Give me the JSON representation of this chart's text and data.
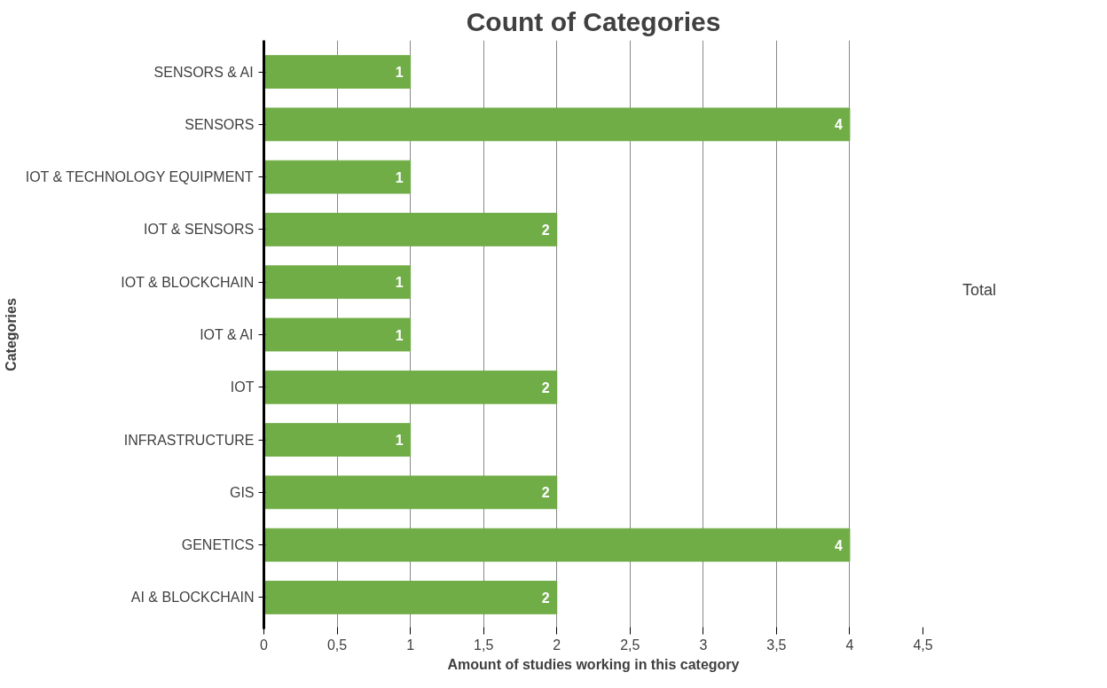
{
  "chart_data": {
    "type": "bar",
    "orientation": "horizontal",
    "title": "Count of Categories",
    "xlabel": "Amount of studies working in this category",
    "ylabel": "Categories",
    "legend_title": "Total",
    "categories": [
      "SENSORS & AI",
      "SENSORS",
      "IOT & TECHNOLOGY EQUIPMENT",
      "IOT & SENSORS",
      "IOT & BLOCKCHAIN",
      "IOT & AI",
      "IOT",
      "INFRASTRUCTURE",
      "GIS",
      "GENETICS",
      "AI & BLOCKCHAIN"
    ],
    "series": [
      {
        "color": "#70ad47",
        "values": [
          1,
          4,
          1,
          2,
          1,
          1,
          2,
          1,
          2,
          4,
          2
        ]
      }
    ],
    "xlim": [
      0,
      4.5
    ],
    "xticks": [
      0,
      {
        "value": 0.5,
        "label": "0,5"
      },
      1,
      {
        "value": 1.5,
        "label": "1,5"
      },
      2,
      {
        "value": 2.5,
        "label": "2,5"
      },
      3,
      {
        "value": 3.5,
        "label": "3,5"
      },
      4,
      {
        "value": 4.5,
        "label": "4,5"
      }
    ],
    "grid": "x",
    "data_labels": true
  }
}
